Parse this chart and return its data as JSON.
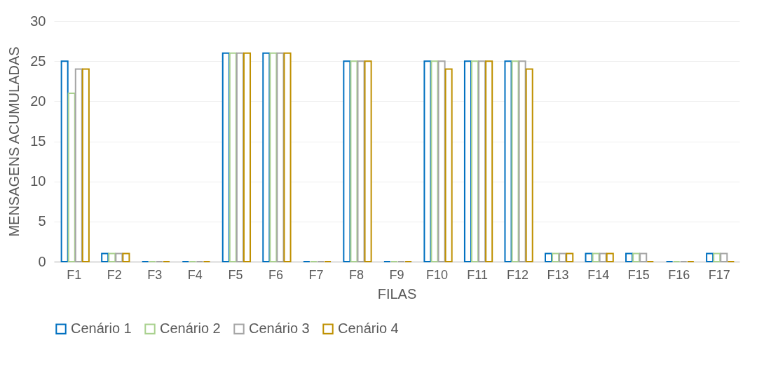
{
  "chart_data": {
    "type": "bar",
    "xlabel": "FILAS",
    "ylabel": "MENSAGENS ACUMULADAS",
    "categories": [
      "F1",
      "F2",
      "F3",
      "F4",
      "F5",
      "F6",
      "F7",
      "F8",
      "F9",
      "F10",
      "F11",
      "F12",
      "F13",
      "F14",
      "F15",
      "F16",
      "F17"
    ],
    "series": [
      {
        "name": "Cenário 1",
        "color": "#0070c0",
        "values": [
          25,
          1,
          0,
          0,
          26,
          26,
          0,
          25,
          0,
          25,
          25,
          25,
          1,
          1,
          1,
          0,
          1
        ]
      },
      {
        "name": "Cenário 2",
        "color": "#a9d18e",
        "values": [
          21,
          1,
          0,
          0,
          26,
          26,
          0,
          25,
          0,
          25,
          25,
          25,
          1,
          1,
          1,
          0,
          1
        ]
      },
      {
        "name": "Cenário 3",
        "color": "#a5a5a5",
        "values": [
          24,
          1,
          0,
          0,
          26,
          26,
          0,
          25,
          0,
          25,
          25,
          25,
          1,
          1,
          1,
          0,
          1
        ]
      },
      {
        "name": "Cenário 4",
        "color": "#bf9000",
        "values": [
          24,
          1,
          0,
          0,
          26,
          26,
          0,
          25,
          0,
          24,
          25,
          24,
          1,
          1,
          0,
          0,
          0
        ]
      }
    ],
    "ylim": [
      0,
      30
    ],
    "yticks": [
      0,
      5,
      10,
      15,
      20,
      25,
      30
    ],
    "grid": "y",
    "legend": "bottom"
  }
}
